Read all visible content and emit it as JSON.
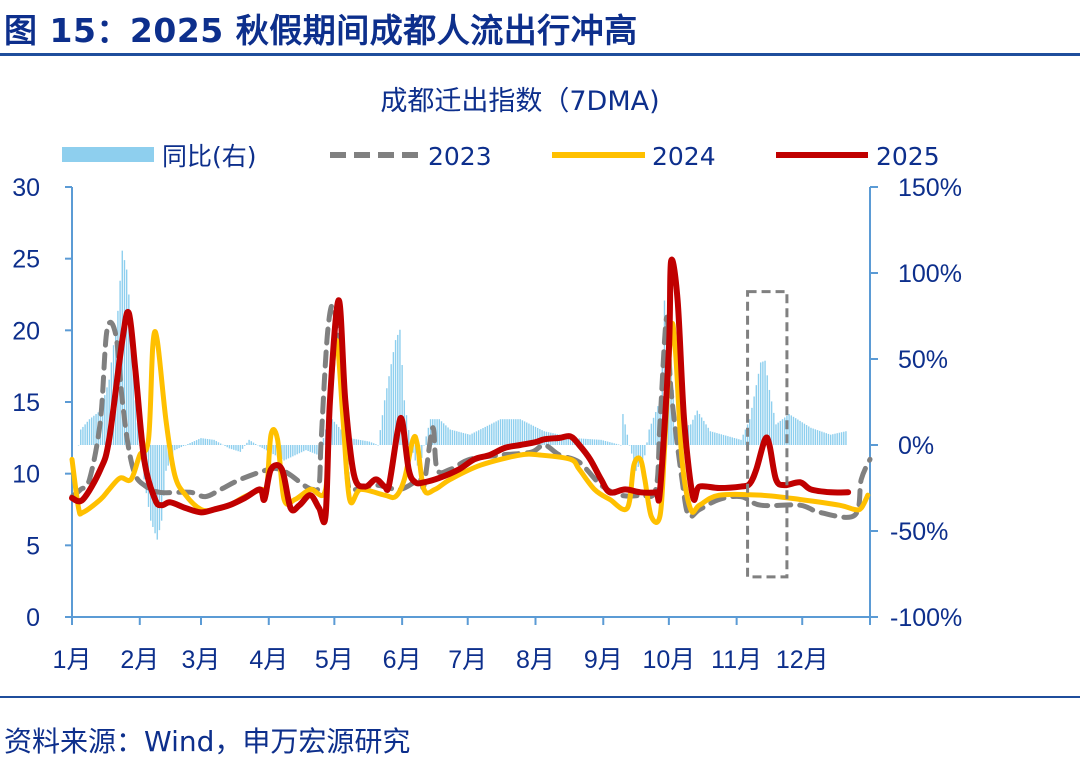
{
  "header": {
    "title": "图 15：2025 秋假期间成都人流出行冲高"
  },
  "footer": {
    "source": "资料来源：Wind，申万宏源研究"
  },
  "colors": {
    "bars": "#8ecfee",
    "y2023": "#808080",
    "y2024": "#ffc000",
    "y2025": "#c00000",
    "axis": "#5b9bd5",
    "text": "#0d2f8c"
  },
  "chart_data": {
    "type": "line",
    "title": "成都迁出指数（7DMA)",
    "xlabel": "",
    "ylabel": "",
    "x_unit": "day of year",
    "xlim": [
      0,
      365
    ],
    "ylim": [
      0,
      30
    ],
    "y2lim": [
      -100,
      150
    ],
    "yticks": [
      "0",
      "5",
      "10",
      "15",
      "20",
      "25",
      "30"
    ],
    "yticks_values": [
      0,
      5,
      10,
      15,
      20,
      25,
      30
    ],
    "y2ticks": [
      "-100%",
      "-50%",
      "0%",
      "50%",
      "100%",
      "150%"
    ],
    "y2ticks_values": [
      -100,
      -50,
      0,
      50,
      100,
      150
    ],
    "months": [
      "1月",
      "2月",
      "3月",
      "4月",
      "5月",
      "6月",
      "7月",
      "8月",
      "9月",
      "10月",
      "11月",
      "12月"
    ],
    "month_start_days": [
      0,
      31,
      59,
      90,
      120,
      151,
      181,
      212,
      243,
      273,
      304,
      334,
      365
    ],
    "legend": [
      "同比(右)",
      "2023",
      "2024",
      "2025"
    ],
    "legend_position": "top",
    "series": [
      {
        "name": "2023",
        "style": "dashed",
        "axis": "left",
        "points": [
          [
            0,
            8.4
          ],
          [
            4,
            8.9
          ],
          [
            8,
            9.6
          ],
          [
            13,
            13.7
          ],
          [
            16,
            20.0
          ],
          [
            20,
            19.7
          ],
          [
            23,
            15.1
          ],
          [
            26,
            11.7
          ],
          [
            29,
            9.9
          ],
          [
            33,
            9.2
          ],
          [
            40,
            8.7
          ],
          [
            54,
            8.7
          ],
          [
            61,
            8.4
          ],
          [
            68,
            8.9
          ],
          [
            77,
            9.6
          ],
          [
            90,
            10.3
          ],
          [
            95,
            10.3
          ],
          [
            100,
            9.9
          ],
          [
            106,
            9.2
          ],
          [
            110,
            8.9
          ],
          [
            113,
            9.2
          ],
          [
            114,
            12.4
          ],
          [
            117,
            20.0
          ],
          [
            120,
            21.4
          ],
          [
            124,
            15.1
          ],
          [
            126,
            9.6
          ],
          [
            129,
            8.9
          ],
          [
            139,
            9.2
          ],
          [
            150,
            8.9
          ],
          [
            159,
            9.6
          ],
          [
            161,
            9.2
          ],
          [
            165,
            13.2
          ],
          [
            167,
            10.3
          ],
          [
            173,
            10.3
          ],
          [
            182,
            11.0
          ],
          [
            196,
            11.3
          ],
          [
            210,
            11.5
          ],
          [
            216,
            12.0
          ],
          [
            223,
            11.3
          ],
          [
            232,
            10.8
          ],
          [
            242,
            9.2
          ],
          [
            251,
            8.5
          ],
          [
            260,
            8.5
          ],
          [
            267,
            8.9
          ],
          [
            269,
            13.7
          ],
          [
            272,
            20.9
          ],
          [
            274,
            15.8
          ],
          [
            279,
            9.6
          ],
          [
            282,
            7.1
          ],
          [
            287,
            7.5
          ],
          [
            296,
            8.2
          ],
          [
            306,
            8.4
          ],
          [
            315,
            7.8
          ],
          [
            333,
            7.8
          ],
          [
            342,
            7.3
          ],
          [
            358,
            7.1
          ],
          [
            361,
            9.6
          ],
          [
            365,
            11.0
          ]
        ]
      },
      {
        "name": "2024",
        "style": "solid",
        "axis": "left",
        "points": [
          [
            0,
            11.0
          ],
          [
            3,
            7.6
          ],
          [
            5,
            7.3
          ],
          [
            13,
            8.2
          ],
          [
            17,
            8.9
          ],
          [
            22,
            9.7
          ],
          [
            27,
            9.6
          ],
          [
            31,
            11.3
          ],
          [
            35,
            12.4
          ],
          [
            37,
            19.0
          ],
          [
            39,
            19.3
          ],
          [
            43,
            13.7
          ],
          [
            47,
            9.9
          ],
          [
            52,
            8.5
          ],
          [
            59,
            7.5
          ],
          [
            65,
            7.5
          ],
          [
            72,
            7.8
          ],
          [
            79,
            8.4
          ],
          [
            87,
            8.9
          ],
          [
            89,
            8.7
          ],
          [
            91,
            12.7
          ],
          [
            94,
            12.4
          ],
          [
            97,
            8.2
          ],
          [
            102,
            8.2
          ],
          [
            109,
            8.9
          ],
          [
            116,
            8.9
          ],
          [
            118,
            15.1
          ],
          [
            121,
            19.3
          ],
          [
            124,
            13.7
          ],
          [
            127,
            8.2
          ],
          [
            132,
            8.9
          ],
          [
            143,
            8.5
          ],
          [
            148,
            8.4
          ],
          [
            152,
            9.6
          ],
          [
            156,
            12.4
          ],
          [
            158,
            12.0
          ],
          [
            161,
            8.9
          ],
          [
            166,
            8.9
          ],
          [
            173,
            9.6
          ],
          [
            187,
            10.6
          ],
          [
            205,
            11.3
          ],
          [
            214,
            11.3
          ],
          [
            228,
            11.0
          ],
          [
            232,
            10.3
          ],
          [
            239,
            8.9
          ],
          [
            246,
            8.2
          ],
          [
            254,
            7.6
          ],
          [
            257,
            10.6
          ],
          [
            260,
            11.0
          ],
          [
            262,
            9.6
          ],
          [
            265,
            7.0
          ],
          [
            269,
            7.1
          ],
          [
            271,
            11.7
          ],
          [
            274,
            20.0
          ],
          [
            276,
            18.6
          ],
          [
            279,
            11.0
          ],
          [
            283,
            7.5
          ],
          [
            287,
            7.8
          ],
          [
            296,
            8.5
          ],
          [
            315,
            8.5
          ],
          [
            333,
            8.2
          ],
          [
            351,
            7.8
          ],
          [
            358,
            7.5
          ],
          [
            361,
            7.6
          ],
          [
            364,
            8.5
          ]
        ]
      },
      {
        "name": "2025",
        "style": "solid",
        "axis": "left",
        "points": [
          [
            0,
            8.3
          ],
          [
            5,
            8.2
          ],
          [
            13,
            10.3
          ],
          [
            17,
            12.4
          ],
          [
            23,
            19.3
          ],
          [
            26,
            21.2
          ],
          [
            29,
            17.2
          ],
          [
            33,
            11.0
          ],
          [
            38,
            8.2
          ],
          [
            41,
            7.8
          ],
          [
            45,
            8.0
          ],
          [
            52,
            7.6
          ],
          [
            59,
            7.3
          ],
          [
            65,
            7.5
          ],
          [
            72,
            7.8
          ],
          [
            79,
            8.3
          ],
          [
            86,
            8.9
          ],
          [
            88,
            8.2
          ],
          [
            91,
            10.3
          ],
          [
            96,
            10.3
          ],
          [
            100,
            7.6
          ],
          [
            104,
            7.8
          ],
          [
            109,
            8.5
          ],
          [
            113,
            7.6
          ],
          [
            116,
            7.1
          ],
          [
            118,
            15.1
          ],
          [
            122,
            22.1
          ],
          [
            125,
            15.1
          ],
          [
            129,
            9.9
          ],
          [
            134,
            9.1
          ],
          [
            139,
            9.6
          ],
          [
            143,
            9.1
          ],
          [
            145,
            9.2
          ],
          [
            149,
            13.0
          ],
          [
            151,
            13.7
          ],
          [
            154,
            10.3
          ],
          [
            157,
            9.4
          ],
          [
            161,
            9.4
          ],
          [
            168,
            9.7
          ],
          [
            177,
            10.3
          ],
          [
            184,
            11.0
          ],
          [
            191,
            11.3
          ],
          [
            198,
            11.8
          ],
          [
            205,
            12.0
          ],
          [
            212,
            12.2
          ],
          [
            216,
            12.4
          ],
          [
            223,
            12.5
          ],
          [
            228,
            12.6
          ],
          [
            232,
            12.0
          ],
          [
            237,
            11.0
          ],
          [
            242,
            9.6
          ],
          [
            246,
            8.7
          ],
          [
            253,
            8.9
          ],
          [
            260,
            8.7
          ],
          [
            267,
            8.7
          ],
          [
            269,
            8.9
          ],
          [
            273,
            18.6
          ],
          [
            274,
            24.8
          ],
          [
            277,
            22.1
          ],
          [
            280,
            13.7
          ],
          [
            284,
            8.4
          ],
          [
            287,
            9.1
          ],
          [
            296,
            9.0
          ],
          [
            306,
            9.1
          ],
          [
            310,
            9.3
          ],
          [
            313,
            10.3
          ],
          [
            317,
            12.4
          ],
          [
            319,
            12.0
          ],
          [
            322,
            9.6
          ],
          [
            326,
            9.2
          ],
          [
            333,
            9.4
          ],
          [
            338,
            8.9
          ],
          [
            347,
            8.7
          ],
          [
            355,
            8.7
          ]
        ]
      },
      {
        "name": "同比(右)",
        "style": "bar",
        "axis": "right",
        "unit": "%",
        "points": [
          [
            3,
            0
          ],
          [
            4,
            9
          ],
          [
            8,
            15
          ],
          [
            13,
            20
          ],
          [
            17,
            38
          ],
          [
            21,
            78
          ],
          [
            23,
            113
          ],
          [
            25,
            102
          ],
          [
            27,
            73
          ],
          [
            29,
            26
          ],
          [
            31,
            0
          ],
          [
            33,
            -20
          ],
          [
            36,
            -44
          ],
          [
            39,
            -55
          ],
          [
            41,
            -44
          ],
          [
            43,
            -15
          ],
          [
            47,
            -3
          ],
          [
            52,
            0
          ],
          [
            59,
            4
          ],
          [
            65,
            3
          ],
          [
            72,
            -2
          ],
          [
            77,
            -4
          ],
          [
            81,
            3
          ],
          [
            86,
            -1
          ],
          [
            93,
            -6
          ],
          [
            97,
            -9
          ],
          [
            102,
            -6
          ],
          [
            107,
            -3
          ],
          [
            113,
            -6
          ],
          [
            116,
            9
          ],
          [
            119,
            15
          ],
          [
            123,
            9
          ],
          [
            127,
            4
          ],
          [
            136,
            2
          ],
          [
            140,
            0
          ],
          [
            143,
            26
          ],
          [
            148,
            61
          ],
          [
            150,
            67
          ],
          [
            152,
            26
          ],
          [
            155,
            0
          ],
          [
            157,
            -9
          ],
          [
            159,
            -15
          ],
          [
            161,
            0
          ],
          [
            164,
            15
          ],
          [
            168,
            15
          ],
          [
            173,
            9
          ],
          [
            182,
            6
          ],
          [
            196,
            15
          ],
          [
            205,
            15
          ],
          [
            216,
            8
          ],
          [
            230,
            4
          ],
          [
            242,
            3
          ],
          [
            251,
            0
          ],
          [
            252,
            18
          ],
          [
            255,
            0
          ],
          [
            258,
            -15
          ],
          [
            262,
            -6
          ],
          [
            264,
            9
          ],
          [
            269,
            26
          ],
          [
            271,
            84
          ],
          [
            274,
            55
          ],
          [
            276,
            9
          ],
          [
            283,
            12
          ],
          [
            286,
            20
          ],
          [
            292,
            8
          ],
          [
            306,
            3
          ],
          [
            310,
            15
          ],
          [
            315,
            48
          ],
          [
            317,
            49
          ],
          [
            319,
            32
          ],
          [
            322,
            12
          ],
          [
            328,
            18
          ],
          [
            338,
            10
          ],
          [
            347,
            6
          ],
          [
            354,
            8
          ]
        ]
      }
    ],
    "annotations": [
      {
        "type": "dashed-box",
        "x_days": [
          309,
          327
        ],
        "y_values": [
          2.8,
          22.7
        ]
      }
    ]
  }
}
